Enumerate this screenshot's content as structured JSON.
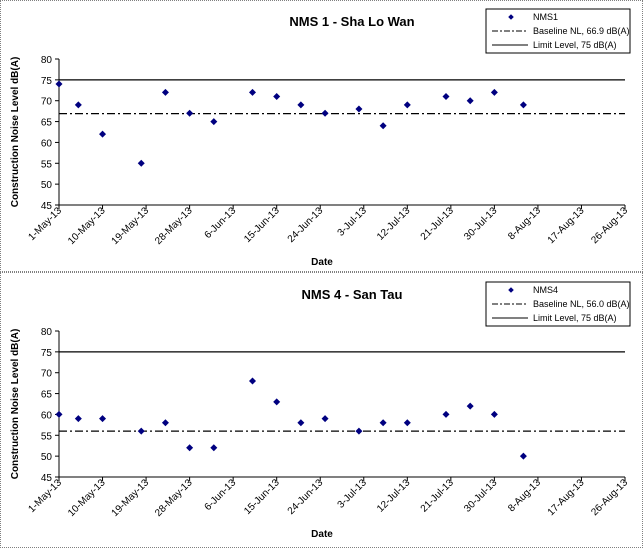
{
  "chart_data": [
    {
      "type": "scatter",
      "title": "NMS 1 - Sha Lo Wan",
      "xlabel": "Date",
      "ylabel": "Construction Noise Level  dB(A)",
      "ylim": [
        45,
        80
      ],
      "yticks": [
        "45",
        "50",
        "55",
        "60",
        "65",
        "70",
        "75",
        "80"
      ],
      "xlim": [
        "2013-05-01",
        "2013-08-26"
      ],
      "xticks": [
        {
          "date": "2013-05-01",
          "label": "1-May-13"
        },
        {
          "date": "2013-05-10",
          "label": "10-May-13"
        },
        {
          "date": "2013-05-19",
          "label": "19-May-13"
        },
        {
          "date": "2013-05-28",
          "label": "28-May-13"
        },
        {
          "date": "2013-06-06",
          "label": "6-Jun-13"
        },
        {
          "date": "2013-06-15",
          "label": "15-Jun-13"
        },
        {
          "date": "2013-06-24",
          "label": "24-Jun-13"
        },
        {
          "date": "2013-07-03",
          "label": "3-Jul-13"
        },
        {
          "date": "2013-07-12",
          "label": "12-Jul-13"
        },
        {
          "date": "2013-07-21",
          "label": "21-Jul-13"
        },
        {
          "date": "2013-07-30",
          "label": "30-Jul-13"
        },
        {
          "date": "2013-08-08",
          "label": "8-Aug-13"
        },
        {
          "date": "2013-08-17",
          "label": "17-Aug-13"
        },
        {
          "date": "2013-08-26",
          "label": "26-Aug-13"
        }
      ],
      "grid": false,
      "legend_position": "top-right",
      "series": [
        {
          "name": "NMS1",
          "color": "#000080",
          "marker": "diamond",
          "points": [
            {
              "x": "2013-05-01",
              "y": 74
            },
            {
              "x": "2013-05-05",
              "y": 69
            },
            {
              "x": "2013-05-10",
              "y": 62
            },
            {
              "x": "2013-05-18",
              "y": 55
            },
            {
              "x": "2013-05-23",
              "y": 72
            },
            {
              "x": "2013-05-28",
              "y": 67
            },
            {
              "x": "2013-06-02",
              "y": 65
            },
            {
              "x": "2013-06-10",
              "y": 72
            },
            {
              "x": "2013-06-15",
              "y": 71
            },
            {
              "x": "2013-06-20",
              "y": 69
            },
            {
              "x": "2013-06-25",
              "y": 67
            },
            {
              "x": "2013-07-02",
              "y": 68
            },
            {
              "x": "2013-07-07",
              "y": 64
            },
            {
              "x": "2013-07-12",
              "y": 69
            },
            {
              "x": "2013-07-20",
              "y": 71
            },
            {
              "x": "2013-07-25",
              "y": 70
            },
            {
              "x": "2013-07-30",
              "y": 72
            },
            {
              "x": "2013-08-05",
              "y": 69
            }
          ]
        }
      ],
      "reference_lines": [
        {
          "name": "Baseline NL, 66.9 dB(A)",
          "y": 66.9,
          "style": "dash-dot",
          "color": "#000000"
        },
        {
          "name": "Limit Level, 75 dB(A)",
          "y": 75,
          "style": "solid",
          "color": "#000000"
        }
      ]
    },
    {
      "type": "scatter",
      "title": "NMS 4 - San Tau",
      "xlabel": "Date",
      "ylabel": "Construction Noise Level  dB(A)",
      "ylim": [
        45,
        80
      ],
      "yticks": [
        "45",
        "50",
        "55",
        "60",
        "65",
        "70",
        "75",
        "80"
      ],
      "xlim": [
        "2013-05-01",
        "2013-08-26"
      ],
      "xticks": [
        {
          "date": "2013-05-01",
          "label": "1-May-13"
        },
        {
          "date": "2013-05-10",
          "label": "10-May-13"
        },
        {
          "date": "2013-05-19",
          "label": "19-May-13"
        },
        {
          "date": "2013-05-28",
          "label": "28-May-13"
        },
        {
          "date": "2013-06-06",
          "label": "6-Jun-13"
        },
        {
          "date": "2013-06-15",
          "label": "15-Jun-13"
        },
        {
          "date": "2013-06-24",
          "label": "24-Jun-13"
        },
        {
          "date": "2013-07-03",
          "label": "3-Jul-13"
        },
        {
          "date": "2013-07-12",
          "label": "12-Jul-13"
        },
        {
          "date": "2013-07-21",
          "label": "21-Jul-13"
        },
        {
          "date": "2013-07-30",
          "label": "30-Jul-13"
        },
        {
          "date": "2013-08-08",
          "label": "8-Aug-13"
        },
        {
          "date": "2013-08-17",
          "label": "17-Aug-13"
        },
        {
          "date": "2013-08-26",
          "label": "26-Aug-13"
        }
      ],
      "grid": false,
      "legend_position": "top-right",
      "series": [
        {
          "name": "NMS4",
          "color": "#000080",
          "marker": "diamond",
          "points": [
            {
              "x": "2013-05-01",
              "y": 60
            },
            {
              "x": "2013-05-05",
              "y": 59
            },
            {
              "x": "2013-05-10",
              "y": 59
            },
            {
              "x": "2013-05-18",
              "y": 56
            },
            {
              "x": "2013-05-23",
              "y": 58
            },
            {
              "x": "2013-05-28",
              "y": 52
            },
            {
              "x": "2013-06-02",
              "y": 52
            },
            {
              "x": "2013-06-10",
              "y": 68
            },
            {
              "x": "2013-06-15",
              "y": 63
            },
            {
              "x": "2013-06-20",
              "y": 58
            },
            {
              "x": "2013-06-25",
              "y": 59
            },
            {
              "x": "2013-07-02",
              "y": 56
            },
            {
              "x": "2013-07-07",
              "y": 58
            },
            {
              "x": "2013-07-12",
              "y": 58
            },
            {
              "x": "2013-07-20",
              "y": 60
            },
            {
              "x": "2013-07-25",
              "y": 62
            },
            {
              "x": "2013-07-30",
              "y": 60
            },
            {
              "x": "2013-08-05",
              "y": 50
            }
          ]
        }
      ],
      "reference_lines": [
        {
          "name": "Baseline NL, 56.0 dB(A)",
          "y": 56.0,
          "style": "dash-dot",
          "color": "#000000"
        },
        {
          "name": "Limit Level, 75 dB(A)",
          "y": 75,
          "style": "solid",
          "color": "#000000"
        }
      ]
    }
  ]
}
